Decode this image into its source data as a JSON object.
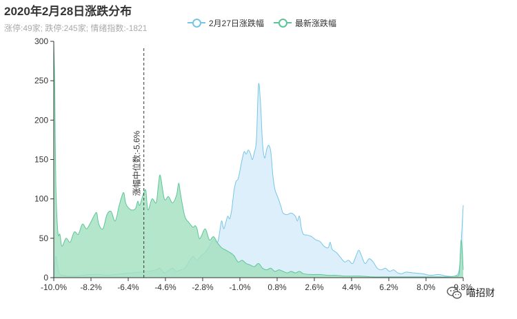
{
  "title": "2020年2月28日涨跌分布",
  "subtitle": "涨停:49家; 跌停:245家; 情绪指数:-1821",
  "watermark": "喵招财",
  "colors": {
    "series_prev": "#75c6e6",
    "series_prev_fill": "#dbeefa",
    "series_new": "#5cc597",
    "series_new_fill": "#a4e0bf",
    "axis": "#333333"
  },
  "chart_data": {
    "type": "area",
    "xlim": [
      -10.0,
      10.0
    ],
    "ylim": [
      0,
      300
    ],
    "x_ticks": [
      "-10.0%",
      "-8.2%",
      "-6.4%",
      "-4.6%",
      "-2.8%",
      "-1.0%",
      "0.8%",
      "2.6%",
      "4.4%",
      "6.2%",
      "8.0%",
      "9.8%"
    ],
    "y_ticks": [
      0,
      50,
      100,
      150,
      200,
      250,
      300
    ],
    "annotation": {
      "label": "涨幅中位数:-5.6%",
      "x": -5.6
    },
    "legend_position": "top",
    "series": [
      {
        "name": "2月27日涨跌幅",
        "points": [
          [
            -10.0,
            0
          ],
          [
            -9.9,
            27
          ],
          [
            -9.8,
            12
          ],
          [
            -9.7,
            4
          ],
          [
            -9.5,
            3
          ],
          [
            -9.3,
            2
          ],
          [
            -9.0,
            2
          ],
          [
            -8.6,
            3
          ],
          [
            -8.2,
            4
          ],
          [
            -7.8,
            4
          ],
          [
            -7.4,
            3
          ],
          [
            -7.0,
            4
          ],
          [
            -6.6,
            5
          ],
          [
            -6.2,
            6
          ],
          [
            -5.8,
            7
          ],
          [
            -5.4,
            8
          ],
          [
            -5.0,
            10
          ],
          [
            -4.8,
            12
          ],
          [
            -4.6,
            6
          ],
          [
            -4.4,
            9
          ],
          [
            -4.2,
            12
          ],
          [
            -4.0,
            8
          ],
          [
            -3.8,
            10
          ],
          [
            -3.6,
            12
          ],
          [
            -3.4,
            20
          ],
          [
            -3.2,
            27
          ],
          [
            -3.0,
            22
          ],
          [
            -2.8,
            28
          ],
          [
            -2.6,
            32
          ],
          [
            -2.4,
            40
          ],
          [
            -2.2,
            48
          ],
          [
            -2.0,
            45
          ],
          [
            -1.9,
            58
          ],
          [
            -1.8,
            72
          ],
          [
            -1.7,
            62
          ],
          [
            -1.6,
            70
          ],
          [
            -1.5,
            78
          ],
          [
            -1.4,
            75
          ],
          [
            -1.3,
            88
          ],
          [
            -1.2,
            110
          ],
          [
            -1.1,
            122
          ],
          [
            -1.0,
            125
          ],
          [
            -0.9,
            137
          ],
          [
            -0.8,
            150
          ],
          [
            -0.7,
            160
          ],
          [
            -0.6,
            157
          ],
          [
            -0.5,
            162
          ],
          [
            -0.4,
            158
          ],
          [
            -0.3,
            150
          ],
          [
            -0.2,
            160
          ],
          [
            -0.1,
            175
          ],
          [
            0.0,
            245
          ],
          [
            0.1,
            220
          ],
          [
            0.2,
            170
          ],
          [
            0.3,
            152
          ],
          [
            0.4,
            163
          ],
          [
            0.5,
            168
          ],
          [
            0.6,
            160
          ],
          [
            0.7,
            130
          ],
          [
            0.8,
            112
          ],
          [
            0.9,
            105
          ],
          [
            1.0,
            98
          ],
          [
            1.1,
            90
          ],
          [
            1.2,
            82
          ],
          [
            1.4,
            80
          ],
          [
            1.6,
            82
          ],
          [
            1.8,
            78
          ],
          [
            1.9,
            72
          ],
          [
            2.0,
            78
          ],
          [
            2.1,
            62
          ],
          [
            2.2,
            55
          ],
          [
            2.4,
            54
          ],
          [
            2.6,
            52
          ],
          [
            2.8,
            48
          ],
          [
            3.0,
            46
          ],
          [
            3.2,
            40
          ],
          [
            3.4,
            38
          ],
          [
            3.5,
            45
          ],
          [
            3.6,
            36
          ],
          [
            3.8,
            32
          ],
          [
            4.0,
            26
          ],
          [
            4.2,
            20
          ],
          [
            4.4,
            22
          ],
          [
            4.6,
            18
          ],
          [
            4.8,
            30
          ],
          [
            4.9,
            35
          ],
          [
            5.0,
            30
          ],
          [
            5.2,
            18
          ],
          [
            5.4,
            24
          ],
          [
            5.6,
            20
          ],
          [
            5.8,
            12
          ],
          [
            6.0,
            10
          ],
          [
            6.2,
            12
          ],
          [
            6.4,
            8
          ],
          [
            6.6,
            10
          ],
          [
            6.8,
            6
          ],
          [
            7.0,
            5
          ],
          [
            7.2,
            7
          ],
          [
            7.6,
            6
          ],
          [
            8.0,
            5
          ],
          [
            8.4,
            3
          ],
          [
            8.8,
            4
          ],
          [
            9.2,
            2
          ],
          [
            9.6,
            2
          ],
          [
            9.8,
            10
          ],
          [
            9.9,
            45
          ],
          [
            10.0,
            92
          ]
        ]
      },
      {
        "name": "最新涨跌幅",
        "points": [
          [
            -10.0,
            298
          ],
          [
            -9.95,
            240
          ],
          [
            -9.9,
            120
          ],
          [
            -9.8,
            58
          ],
          [
            -9.7,
            55
          ],
          [
            -9.6,
            40
          ],
          [
            -9.4,
            50
          ],
          [
            -9.2,
            45
          ],
          [
            -9.0,
            58
          ],
          [
            -8.8,
            55
          ],
          [
            -8.6,
            68
          ],
          [
            -8.4,
            62
          ],
          [
            -8.2,
            70
          ],
          [
            -8.0,
            80
          ],
          [
            -7.9,
            82
          ],
          [
            -7.8,
            68
          ],
          [
            -7.6,
            62
          ],
          [
            -7.4,
            80
          ],
          [
            -7.2,
            84
          ],
          [
            -7.0,
            72
          ],
          [
            -6.8,
            92
          ],
          [
            -6.6,
            108
          ],
          [
            -6.5,
            96
          ],
          [
            -6.4,
            90
          ],
          [
            -6.2,
            86
          ],
          [
            -6.0,
            88
          ],
          [
            -5.9,
            97
          ],
          [
            -5.8,
            92
          ],
          [
            -5.6,
            108
          ],
          [
            -5.5,
            110
          ],
          [
            -5.4,
            86
          ],
          [
            -5.2,
            100
          ],
          [
            -5.0,
            95
          ],
          [
            -4.9,
            115
          ],
          [
            -4.8,
            130
          ],
          [
            -4.6,
            100
          ],
          [
            -4.4,
            103
          ],
          [
            -4.2,
            95
          ],
          [
            -4.0,
            105
          ],
          [
            -3.9,
            120
          ],
          [
            -3.8,
            105
          ],
          [
            -3.6,
            78
          ],
          [
            -3.4,
            70
          ],
          [
            -3.2,
            64
          ],
          [
            -3.1,
            66
          ],
          [
            -3.0,
            62
          ],
          [
            -2.9,
            50
          ],
          [
            -2.8,
            52
          ],
          [
            -2.6,
            62
          ],
          [
            -2.4,
            48
          ],
          [
            -2.2,
            52
          ],
          [
            -2.0,
            44
          ],
          [
            -1.8,
            38
          ],
          [
            -1.6,
            35
          ],
          [
            -1.4,
            32
          ],
          [
            -1.2,
            28
          ],
          [
            -1.0,
            20
          ],
          [
            -0.8,
            22
          ],
          [
            -0.6,
            18
          ],
          [
            -0.4,
            16
          ],
          [
            -0.2,
            14
          ],
          [
            0.0,
            18
          ],
          [
            0.2,
            12
          ],
          [
            0.4,
            10
          ],
          [
            0.6,
            12
          ],
          [
            0.8,
            8
          ],
          [
            1.0,
            10
          ],
          [
            1.2,
            8
          ],
          [
            1.4,
            6
          ],
          [
            1.6,
            8
          ],
          [
            1.8,
            6
          ],
          [
            2.0,
            8
          ],
          [
            2.2,
            5
          ],
          [
            2.6,
            4
          ],
          [
            3.0,
            4
          ],
          [
            3.4,
            3
          ],
          [
            3.8,
            3
          ],
          [
            4.2,
            2
          ],
          [
            4.6,
            2
          ],
          [
            5.0,
            2
          ],
          [
            5.6,
            1
          ],
          [
            6.2,
            1
          ],
          [
            7.0,
            1
          ],
          [
            7.8,
            1
          ],
          [
            8.6,
            1
          ],
          [
            9.2,
            1
          ],
          [
            9.6,
            2
          ],
          [
            9.8,
            5
          ],
          [
            9.9,
            48
          ],
          [
            10.0,
            10
          ]
        ]
      }
    ]
  }
}
